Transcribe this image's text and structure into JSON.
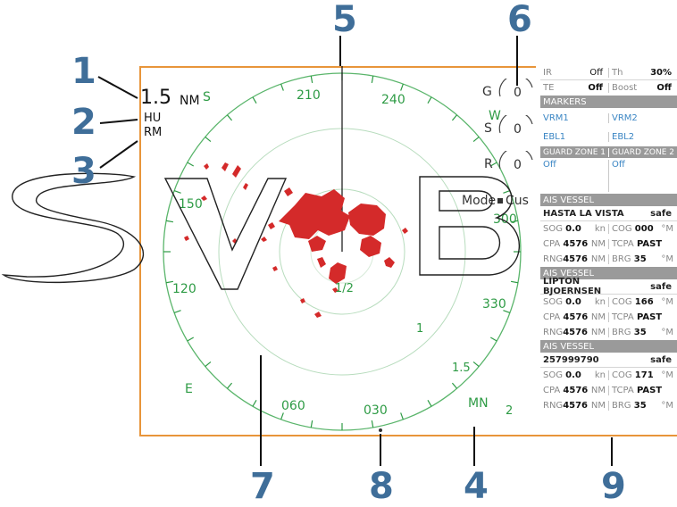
{
  "callouts": {
    "c1": "1",
    "c2": "2",
    "c3": "3",
    "c4": "4",
    "c5": "5",
    "c6": "6",
    "c7": "7",
    "c8": "8",
    "c9": "9"
  },
  "range": {
    "value": "1.5",
    "unit": "NM",
    "orientation": "HU",
    "motion": "RM"
  },
  "bearings": {
    "b210": "210",
    "b240": "240",
    "b150": "150",
    "b300": "300",
    "b120": "120",
    "b330": "330",
    "b060": "060",
    "b030": "030"
  },
  "compass": {
    "s": "S",
    "w": "W",
    "e": "E"
  },
  "rings": {
    "half": "1/2",
    "one": "1",
    "one_half": "1.5",
    "two": "2"
  },
  "north_mode": "MN",
  "gauges": {
    "g_label": "G",
    "g_val": "0",
    "s_label": "S",
    "s_val": "0",
    "r_label": "R",
    "r_val": "0"
  },
  "mode_label": "Mode",
  "mode_value": "Cus",
  "panel": {
    "ir_label": "IR",
    "ir_val": "Off",
    "th_label": "Th",
    "th_val": "30%",
    "te_label": "TE",
    "te_val": "Off",
    "boost_label": "Boost",
    "boost_val": "Off",
    "markers_header": "MARKERS",
    "vrm1": "VRM1",
    "vrm2": "VRM2",
    "ebl1": "EBL1",
    "ebl2": "EBL2",
    "gz1_header": "GUARD ZONE 1",
    "gz2_header": "GUARD ZONE 2",
    "gz1_val": "Off",
    "gz2_val": "Off",
    "vessels": [
      {
        "header": "AIS VESSEL",
        "name": "HASTA LA VISTA",
        "status": "safe",
        "sog": "0.0",
        "sog_unit": "kn",
        "cog": "000",
        "cpa": "4576",
        "cpa_unit": "NM",
        "tcpa": "PAST",
        "rng": "4576",
        "rng_unit": "NM",
        "brg": "35"
      },
      {
        "header": "AIS VESSEL",
        "name": "LIPTON BJOERNSEN",
        "status": "safe",
        "sog": "0.0",
        "sog_unit": "kn",
        "cog": "166",
        "cpa": "4576",
        "cpa_unit": "NM",
        "tcpa": "PAST",
        "rng": "4576",
        "rng_unit": "NM",
        "brg": "35"
      },
      {
        "header": "AIS VESSEL",
        "name": "257999790",
        "status": "safe",
        "sog": "0.0",
        "sog_unit": "kn",
        "cog": "171",
        "cpa": "4576",
        "cpa_unit": "NM",
        "tcpa": "PAST",
        "rng": "4576",
        "rng_unit": "NM",
        "brg": "35"
      }
    ],
    "sog_label": "SOG",
    "cog_label": "COG",
    "cpa_label": "CPA",
    "tcpa_label": "TCPA",
    "rng_label": "RNG",
    "brg_label": "BRG",
    "deg_unit": "°M"
  },
  "colors": {
    "callout": "#3f6e99",
    "frame": "#e8953a",
    "ring": "#2e9b45",
    "echo": "#d42a2a",
    "header": "#9a9a9a"
  },
  "watermark": "SVB"
}
